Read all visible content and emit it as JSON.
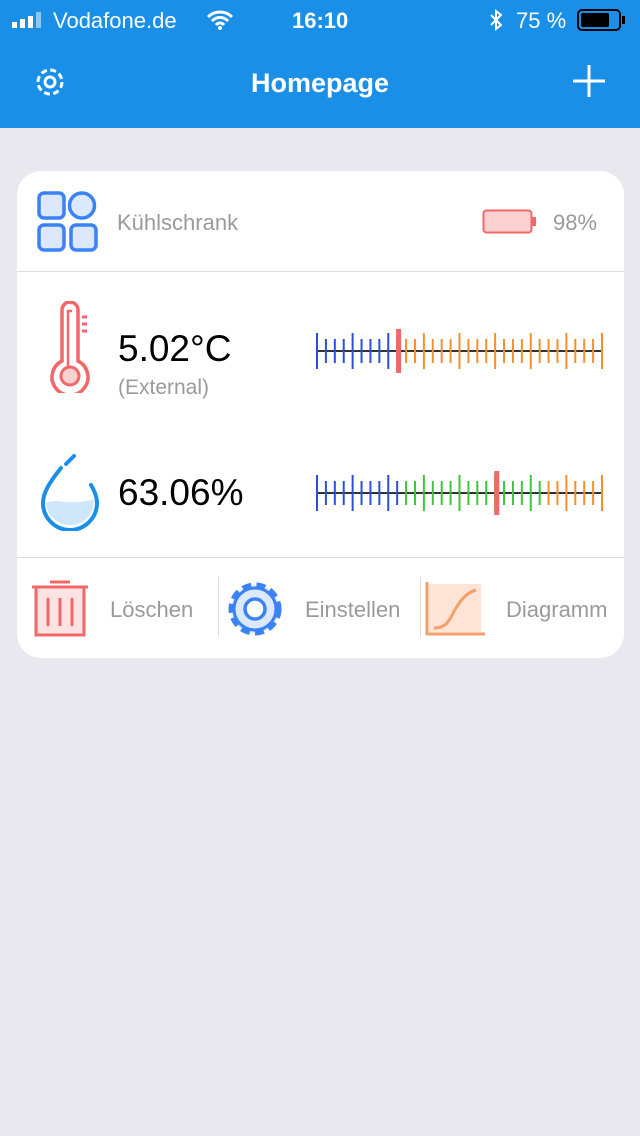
{
  "status_bar": {
    "carrier": "Vodafone.de",
    "time": "16:10",
    "battery": "75 %"
  },
  "header": {
    "title": "Homepage",
    "left_icon": "gear-icon",
    "right_icon": "plus-icon"
  },
  "device": {
    "name": "Kühlschrank",
    "battery": "98%",
    "battery_level": 0.98,
    "colors": {
      "battery": "#f26767",
      "icon": "#3b82f6"
    }
  },
  "temperature": {
    "value": "5.02°C",
    "source": "(External)",
    "gauge": {
      "min": -5,
      "max": 30,
      "current": 5.02,
      "zones": [
        {
          "to": 5,
          "color": "#2b4fd8"
        },
        {
          "to": 30,
          "color": "#f5902a"
        }
      ]
    }
  },
  "humidity": {
    "value": "63.06%",
    "gauge": {
      "min": 0,
      "max": 100,
      "current": 63.06,
      "zones": [
        {
          "to": 30,
          "color": "#2b4fd8"
        },
        {
          "to": 80,
          "color": "#3cc63c"
        },
        {
          "to": 100,
          "color": "#f5902a"
        }
      ]
    }
  },
  "actions": {
    "delete": "Löschen",
    "settings": "Einstellen",
    "chart": "Diagramm"
  },
  "marker_color": "#f26767"
}
